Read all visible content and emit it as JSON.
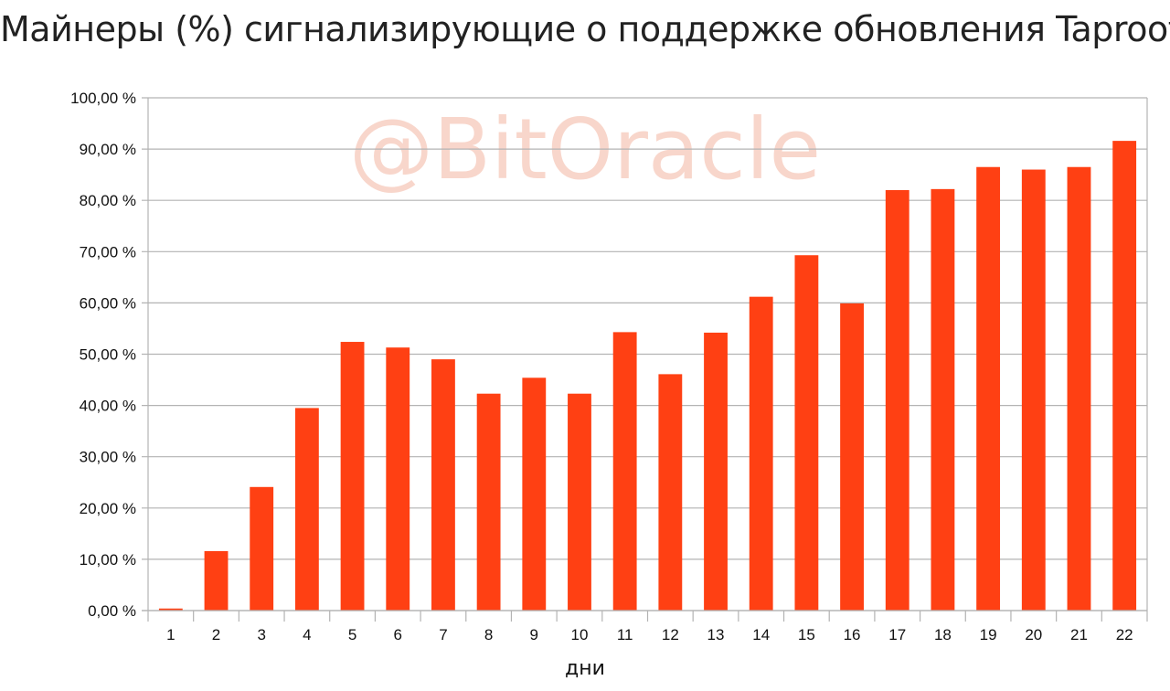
{
  "watermark": "@BitOracle",
  "chart_data": {
    "type": "bar",
    "title": "Майнеры (%) сигнализирующие о поддержке обновления Taproot",
    "xlabel": "дни",
    "ylabel": "",
    "ylim": [
      0,
      100
    ],
    "y_ticks": [
      0,
      10,
      20,
      30,
      40,
      50,
      60,
      70,
      80,
      90,
      100
    ],
    "y_tick_labels": [
      "0,00 %",
      "10,00 %",
      "20,00 %",
      "30,00 %",
      "40,00 %",
      "50,00 %",
      "60,00 %",
      "70,00 %",
      "80,00 %",
      "90,00 %",
      "100,00 %"
    ],
    "categories": [
      "1",
      "2",
      "3",
      "4",
      "5",
      "6",
      "7",
      "8",
      "9",
      "10",
      "11",
      "12",
      "13",
      "14",
      "15",
      "16",
      "17",
      "18",
      "19",
      "20",
      "21",
      "22"
    ],
    "values": [
      0.4,
      11.6,
      24.1,
      39.5,
      52.4,
      51.3,
      49.0,
      42.3,
      45.4,
      42.3,
      54.3,
      46.1,
      54.2,
      61.2,
      69.3,
      59.9,
      82.0,
      82.2,
      86.5,
      86.0,
      86.5,
      91.6
    ],
    "bar_color": "#ff4013",
    "grid_color": "#b3b3b3",
    "grid": true,
    "legend": "none"
  }
}
